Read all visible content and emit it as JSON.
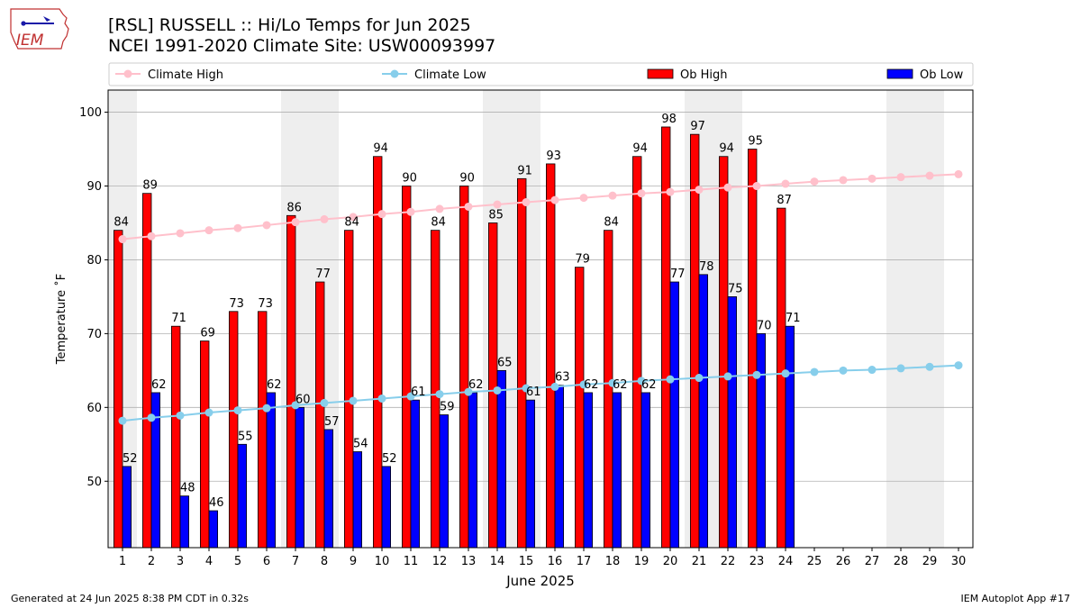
{
  "logo": {
    "text": "IEM"
  },
  "header": {
    "title_line1": "[RSL] RUSSELL :: Hi/Lo Temps for Jun 2025",
    "title_line2": "NCEI 1991-2020 Climate Site: USW00093997"
  },
  "footer": {
    "left": "Generated at 24 Jun 2025 8:38 PM CDT in 0.32s",
    "right": "IEM Autoplot App #17"
  },
  "colors": {
    "ob_high": "#ff0000",
    "ob_low": "#0000ff",
    "climate_high": "#ffc0cb",
    "climate_low": "#87ceeb",
    "weekend_shade": "#eeeeee",
    "grid": "#b0b0b0"
  },
  "chart_data": {
    "type": "bar",
    "xlabel": "June 2025",
    "ylabel": "Temperature ˚F",
    "xlim": [
      0.5,
      30.5
    ],
    "ylim": [
      41,
      103
    ],
    "yticks": [
      50,
      60,
      70,
      80,
      90,
      100
    ],
    "grid": "horizontal",
    "legend_placement": "top",
    "weekend_shaded_days": [
      1,
      7,
      8,
      14,
      15,
      21,
      22,
      28,
      29
    ],
    "days": [
      1,
      2,
      3,
      4,
      5,
      6,
      7,
      8,
      9,
      10,
      11,
      12,
      13,
      14,
      15,
      16,
      17,
      18,
      19,
      20,
      21,
      22,
      23,
      24,
      25,
      26,
      27,
      28,
      29,
      30
    ],
    "series": [
      {
        "name": "Climate High",
        "kind": "line",
        "values": [
          82.8,
          83.2,
          83.6,
          84.0,
          84.3,
          84.7,
          85.1,
          85.5,
          85.8,
          86.2,
          86.5,
          86.9,
          87.2,
          87.5,
          87.8,
          88.1,
          88.4,
          88.7,
          89.0,
          89.2,
          89.5,
          89.8,
          90.0,
          90.3,
          90.6,
          90.8,
          91.0,
          91.2,
          91.4,
          91.6
        ]
      },
      {
        "name": "Climate Low",
        "kind": "line",
        "values": [
          58.2,
          58.6,
          58.9,
          59.3,
          59.6,
          59.9,
          60.3,
          60.6,
          60.9,
          61.2,
          61.5,
          61.8,
          62.1,
          62.3,
          62.6,
          62.8,
          63.1,
          63.3,
          63.6,
          63.8,
          64.0,
          64.2,
          64.4,
          64.6,
          64.8,
          65.0,
          65.1,
          65.3,
          65.5,
          65.7
        ]
      },
      {
        "name": "Ob High",
        "kind": "bar",
        "values": [
          84,
          89,
          71,
          69,
          73,
          73,
          86,
          77,
          84,
          94,
          90,
          84,
          90,
          85,
          91,
          93,
          79,
          84,
          94,
          98,
          97,
          94,
          95,
          87
        ]
      },
      {
        "name": "Ob Low",
        "kind": "bar",
        "values": [
          52,
          62,
          48,
          46,
          55,
          62,
          60,
          57,
          54,
          52,
          61,
          59,
          62,
          65,
          61,
          63,
          62,
          62,
          62,
          77,
          78,
          75,
          70,
          71
        ]
      }
    ]
  }
}
